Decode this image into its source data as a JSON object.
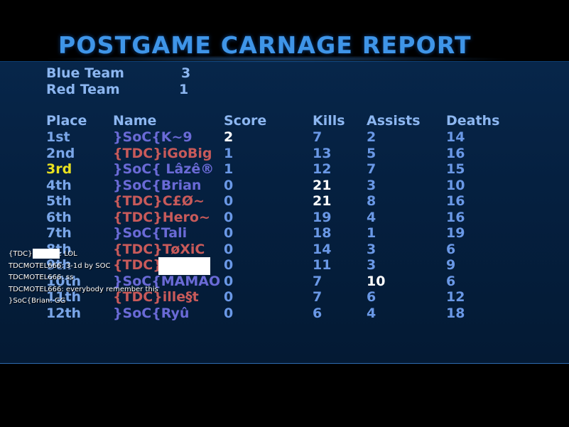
{
  "title": "POSTGAME CARNAGE REPORT",
  "teams": [
    {
      "label": "Blue Team",
      "score": "3"
    },
    {
      "label": "Red Team",
      "score": "1"
    }
  ],
  "headers": {
    "place": "Place",
    "name": "Name",
    "score": "Score",
    "kills": "Kills",
    "assists": "Assists",
    "deaths": "Deaths"
  },
  "rows": [
    {
      "place": "1st",
      "name": "}SoC{K~9",
      "team": "blue",
      "score": "2",
      "kills": "7",
      "assists": "2",
      "deaths": "14"
    },
    {
      "place": "2nd",
      "name": "{TDC}iGoBig",
      "team": "red",
      "score": "1",
      "kills": "13",
      "assists": "5",
      "deaths": "16"
    },
    {
      "place": "3rd",
      "name": "}SoC{ Lâzê®",
      "team": "blue",
      "score": "1",
      "kills": "12",
      "assists": "7",
      "deaths": "15"
    },
    {
      "place": "4th",
      "name": "}SoC{Brian",
      "team": "blue",
      "score": "0",
      "kills": "21",
      "assists": "3",
      "deaths": "10"
    },
    {
      "place": "5th",
      "name": "{TDC}C£Ø~",
      "team": "red",
      "score": "0",
      "kills": "21",
      "assists": "8",
      "deaths": "16"
    },
    {
      "place": "6th",
      "name": "{TDC}Hero~",
      "team": "red",
      "score": "0",
      "kills": "19",
      "assists": "4",
      "deaths": "16"
    },
    {
      "place": "7th",
      "name": "}SoC{Tali",
      "team": "blue",
      "score": "0",
      "kills": "18",
      "assists": "1",
      "deaths": "19"
    },
    {
      "place": "8th",
      "name": "{TDC}TøXiC",
      "team": "red",
      "score": "0",
      "kills": "14",
      "assists": "3",
      "deaths": "6"
    },
    {
      "place": "9th",
      "name": "{TDC}",
      "team": "red",
      "score": "0",
      "kills": "11",
      "assists": "3",
      "deaths": "9"
    },
    {
      "place": "10th",
      "name": "}SoC{MAMAO",
      "team": "blue",
      "score": "0",
      "kills": "7",
      "assists": "10",
      "deaths": "6"
    },
    {
      "place": "11th",
      "name": "{TDC}ille§t",
      "team": "red",
      "score": "0",
      "kills": "7",
      "assists": "6",
      "deaths": "12"
    },
    {
      "place": "12th",
      "name": "}SoC{Ryû",
      "team": "blue",
      "score": "0",
      "kills": "6",
      "assists": "4",
      "deaths": "18"
    }
  ],
  "chat": [
    {
      "prefix": "{TDC}",
      "text": ": LOL"
    },
    {
      "prefix": "",
      "text": "TDCMOTEL666: 3-1d by SOC"
    },
    {
      "prefix": "",
      "text": "TDCMOTEL666: ss"
    },
    {
      "prefix": "",
      "text": "TDCMOTEL666: everybody remember this"
    },
    {
      "prefix": "",
      "text": "}SoC{Brian: GG"
    }
  ],
  "colors": {
    "title": "#3f95e8",
    "label": "#8cb6f0",
    "blue_team_name": "#6a6ad6",
    "red_team_name": "#c85a5a",
    "stat": "#6a98e6",
    "highlight": "#ffffff",
    "third_place": "#e8e020"
  }
}
